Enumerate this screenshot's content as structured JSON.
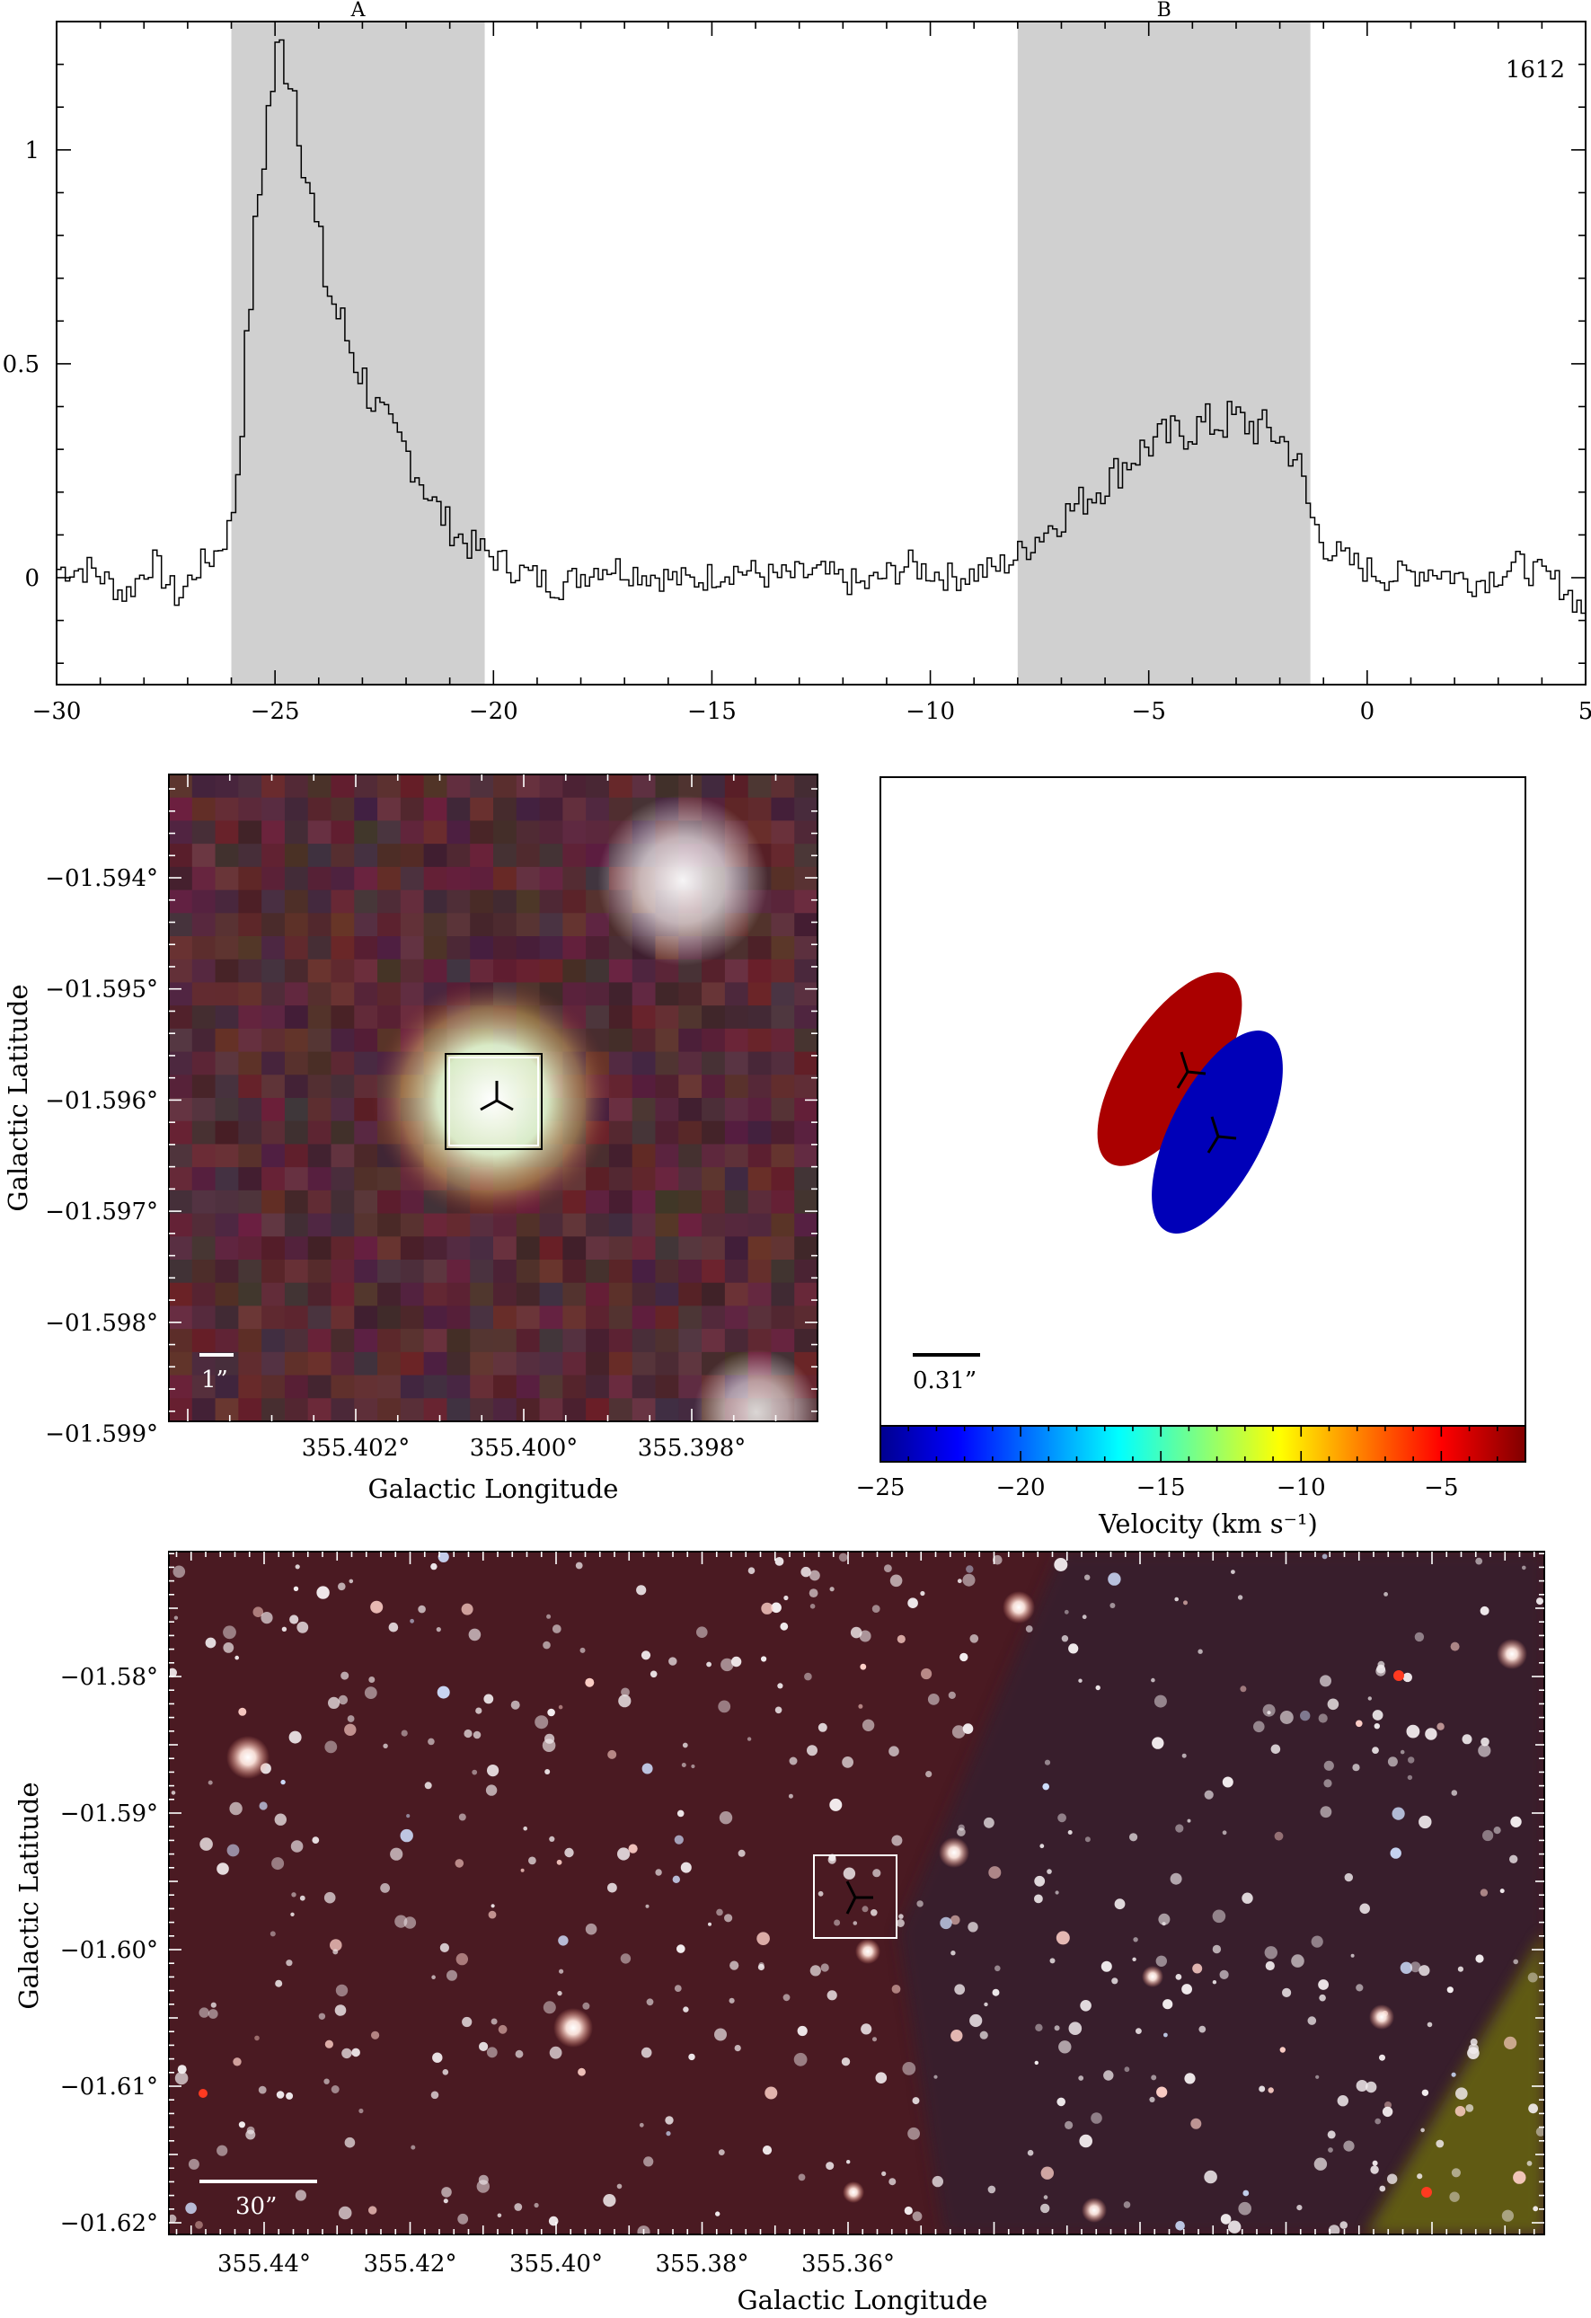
{
  "chart_data": [
    {
      "type": "line",
      "panel": "spectrum",
      "label": "1612",
      "xlim": [
        -30,
        5
      ],
      "ylim": [
        -0.25,
        1.3
      ],
      "x_ticks": [
        "−30",
        "−25",
        "−20",
        "−15",
        "−10",
        "−5",
        "0",
        "5"
      ],
      "y_ticks": [
        "0",
        "0.5",
        "1"
      ],
      "regions": [
        {
          "name": "A",
          "x_start": -26.0,
          "x_end": -20.2
        },
        {
          "name": "B",
          "x_start": -8.0,
          "x_end": -1.3
        }
      ],
      "series_points": [
        [
          -29.2,
          0.02
        ],
        [
          -28.4,
          -0.04
        ],
        [
          -27.8,
          0.04
        ],
        [
          -27.2,
          -0.05
        ],
        [
          -26.8,
          0.02
        ],
        [
          -26.4,
          0.05
        ],
        [
          -26.0,
          0.12
        ],
        [
          -25.8,
          0.3
        ],
        [
          -25.6,
          0.6
        ],
        [
          -25.4,
          0.85
        ],
        [
          -25.2,
          1.05
        ],
        [
          -25.0,
          1.19
        ],
        [
          -24.8,
          1.24
        ],
        [
          -24.6,
          1.18
        ],
        [
          -24.4,
          1.05
        ],
        [
          -24.2,
          0.9
        ],
        [
          -24.0,
          0.78
        ],
        [
          -23.8,
          0.68
        ],
        [
          -23.5,
          0.6
        ],
        [
          -23.2,
          0.52
        ],
        [
          -22.9,
          0.45
        ],
        [
          -22.6,
          0.38
        ],
        [
          -22.3,
          0.33
        ],
        [
          -22.0,
          0.3
        ],
        [
          -21.7,
          0.24
        ],
        [
          -21.4,
          0.18
        ],
        [
          -21.0,
          0.12
        ],
        [
          -20.6,
          0.08
        ],
        [
          -20.2,
          0.06
        ],
        [
          -19.5,
          0.02
        ],
        [
          -18.5,
          -0.02
        ],
        [
          -17.5,
          0.03
        ],
        [
          -16.5,
          0.01
        ],
        [
          -15.5,
          -0.01
        ],
        [
          -14.5,
          0.02
        ],
        [
          -13.5,
          0.0
        ],
        [
          -12.5,
          0.01
        ],
        [
          -11.5,
          -0.02
        ],
        [
          -10.5,
          0.03
        ],
        [
          -9.5,
          0.0
        ],
        [
          -8.5,
          0.02
        ],
        [
          -8.0,
          0.05
        ],
        [
          -7.5,
          0.1
        ],
        [
          -7.0,
          0.14
        ],
        [
          -6.5,
          0.18
        ],
        [
          -6.0,
          0.22
        ],
        [
          -5.5,
          0.27
        ],
        [
          -5.0,
          0.31
        ],
        [
          -4.5,
          0.33
        ],
        [
          -4.0,
          0.35
        ],
        [
          -3.5,
          0.36
        ],
        [
          -3.0,
          0.37
        ],
        [
          -2.5,
          0.35
        ],
        [
          -2.0,
          0.33
        ],
        [
          -1.6,
          0.28
        ],
        [
          -1.3,
          0.15
        ],
        [
          -1.0,
          0.08
        ],
        [
          -0.5,
          0.04
        ],
        [
          0.5,
          0.0
        ],
        [
          1.5,
          0.02
        ],
        [
          2.5,
          -0.01
        ],
        [
          3.5,
          0.03
        ],
        [
          4.5,
          -0.02
        ],
        [
          5.0,
          -0.08
        ]
      ]
    },
    {
      "type": "heatmap",
      "panel": "zoom-image",
      "xlabel": "Galactic Longitude",
      "ylabel": "Galactic Latitude",
      "x_ticks": [
        "355.402°",
        "355.400°",
        "355.398°"
      ],
      "y_ticks": [
        "−01.594°",
        "−01.595°",
        "−01.596°",
        "−01.597°",
        "−01.598°",
        "−01.599°"
      ],
      "scale_label": "1”"
    },
    {
      "type": "scatter",
      "panel": "velocity-map",
      "colorbar_label": "Velocity (km s⁻¹)",
      "colorbar_ticks": [
        "−25",
        "−20",
        "−15",
        "−10",
        "−5"
      ],
      "colorbar_range": [
        -25,
        -2
      ],
      "components": [
        {
          "name": "A",
          "velocity": -3
        },
        {
          "name": "B",
          "velocity": -24
        }
      ],
      "scale_label": "0.31”"
    },
    {
      "type": "heatmap",
      "panel": "wide-image",
      "xlabel": "Galactic Longitude",
      "ylabel": "Galactic Latitude",
      "x_ticks": [
        "355.44°",
        "355.42°",
        "355.40°",
        "355.38°",
        "355.36°"
      ],
      "y_ticks": [
        "−01.58°",
        "−01.59°",
        "−01.60°",
        "−01.61°",
        "−01.62°"
      ],
      "scale_label": "30”"
    }
  ]
}
